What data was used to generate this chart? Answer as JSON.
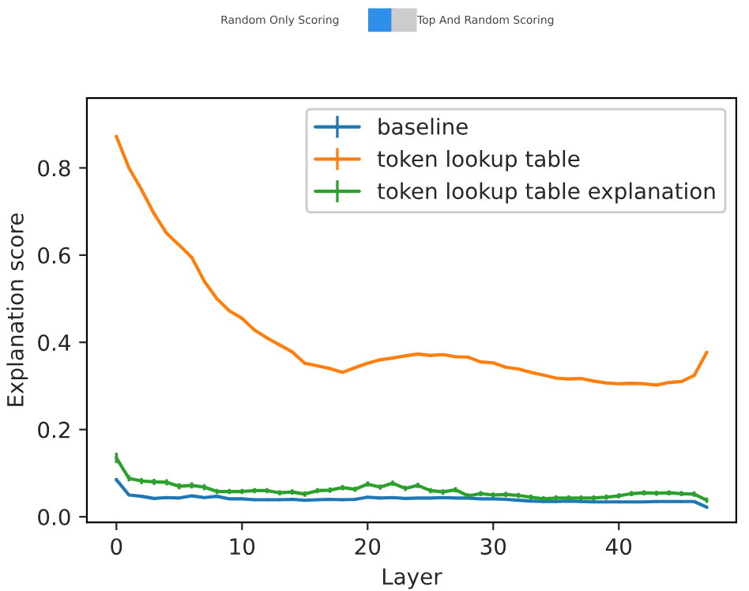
{
  "chart_data": {
    "type": "line",
    "xlabel": "Layer",
    "ylabel": "Explanation score",
    "annotations": [
      "Random Only Scoring",
      "Top And Random Scoring"
    ],
    "x": [
      0,
      1,
      2,
      3,
      4,
      5,
      6,
      7,
      8,
      9,
      10,
      11,
      12,
      13,
      14,
      15,
      16,
      17,
      18,
      19,
      20,
      21,
      22,
      23,
      24,
      25,
      26,
      27,
      28,
      29,
      30,
      31,
      32,
      33,
      34,
      35,
      36,
      37,
      38,
      39,
      40,
      41,
      42,
      43,
      44,
      45,
      46,
      47
    ],
    "series": [
      {
        "name": "baseline",
        "color": "#1f77b4",
        "values": [
          0.085,
          0.05,
          0.047,
          0.042,
          0.044,
          0.043,
          0.048,
          0.044,
          0.047,
          0.041,
          0.041,
          0.039,
          0.039,
          0.039,
          0.04,
          0.038,
          0.039,
          0.04,
          0.039,
          0.04,
          0.045,
          0.043,
          0.044,
          0.042,
          0.043,
          0.043,
          0.044,
          0.043,
          0.043,
          0.041,
          0.041,
          0.04,
          0.038,
          0.036,
          0.035,
          0.035,
          0.036,
          0.035,
          0.034,
          0.034,
          0.034,
          0.034,
          0.034,
          0.035,
          0.035,
          0.035,
          0.035,
          0.022
        ],
        "errors": [
          0.004,
          0.003,
          0.003,
          0.003,
          0.003,
          0.003,
          0.003,
          0.003,
          0.003,
          0.003,
          0.003,
          0.003,
          0.003,
          0.003,
          0.003,
          0.003,
          0.003,
          0.003,
          0.003,
          0.003,
          0.003,
          0.003,
          0.003,
          0.003,
          0.003,
          0.003,
          0.003,
          0.003,
          0.003,
          0.003,
          0.003,
          0.003,
          0.003,
          0.003,
          0.003,
          0.003,
          0.003,
          0.003,
          0.003,
          0.003,
          0.003,
          0.003,
          0.003,
          0.003,
          0.003,
          0.003,
          0.003,
          0.003
        ]
      },
      {
        "name": "token lookup table",
        "color": "#ff7f0e",
        "values": [
          0.872,
          0.8,
          0.75,
          0.695,
          0.65,
          0.623,
          0.595,
          0.54,
          0.5,
          0.472,
          0.455,
          0.428,
          0.41,
          0.394,
          0.378,
          0.352,
          0.346,
          0.34,
          0.331,
          0.342,
          0.352,
          0.36,
          0.364,
          0.369,
          0.373,
          0.37,
          0.372,
          0.367,
          0.366,
          0.355,
          0.353,
          0.343,
          0.339,
          0.331,
          0.325,
          0.318,
          0.316,
          0.317,
          0.311,
          0.307,
          0.305,
          0.306,
          0.305,
          0.302,
          0.308,
          0.31,
          0.324,
          0.377
        ],
        "errors": [
          0.003,
          0.003,
          0.003,
          0.003,
          0.003,
          0.003,
          0.003,
          0.003,
          0.003,
          0.003,
          0.003,
          0.003,
          0.003,
          0.003,
          0.003,
          0.003,
          0.003,
          0.003,
          0.003,
          0.003,
          0.003,
          0.003,
          0.003,
          0.003,
          0.003,
          0.003,
          0.003,
          0.003,
          0.003,
          0.003,
          0.003,
          0.003,
          0.003,
          0.003,
          0.003,
          0.003,
          0.003,
          0.003,
          0.003,
          0.003,
          0.003,
          0.003,
          0.003,
          0.003,
          0.003,
          0.003,
          0.003,
          0.003
        ]
      },
      {
        "name": "token lookup table explanation",
        "color": "#2ca02c",
        "values": [
          0.135,
          0.088,
          0.082,
          0.08,
          0.079,
          0.07,
          0.072,
          0.068,
          0.058,
          0.058,
          0.058,
          0.06,
          0.06,
          0.055,
          0.057,
          0.052,
          0.06,
          0.061,
          0.067,
          0.063,
          0.075,
          0.068,
          0.077,
          0.065,
          0.072,
          0.06,
          0.057,
          0.062,
          0.048,
          0.053,
          0.05,
          0.051,
          0.049,
          0.045,
          0.041,
          0.043,
          0.043,
          0.043,
          0.043,
          0.045,
          0.048,
          0.053,
          0.055,
          0.054,
          0.055,
          0.053,
          0.052,
          0.038
        ],
        "errors": [
          0.012,
          0.007,
          0.007,
          0.007,
          0.007,
          0.007,
          0.007,
          0.007,
          0.006,
          0.006,
          0.006,
          0.006,
          0.006,
          0.006,
          0.006,
          0.006,
          0.006,
          0.006,
          0.006,
          0.006,
          0.006,
          0.006,
          0.006,
          0.006,
          0.006,
          0.006,
          0.006,
          0.006,
          0.006,
          0.006,
          0.006,
          0.006,
          0.006,
          0.006,
          0.006,
          0.006,
          0.006,
          0.006,
          0.006,
          0.006,
          0.006,
          0.006,
          0.006,
          0.006,
          0.006,
          0.006,
          0.006,
          0.006
        ]
      }
    ],
    "xlim": [
      -2.35,
      49.35
    ],
    "ylim": [
      -0.013,
      0.96
    ],
    "xticks": [
      0,
      10,
      20,
      30,
      40
    ],
    "yticks": [
      {
        "value": 0,
        "label": "0.0"
      },
      {
        "value": 0.2,
        "label": "0.2"
      },
      {
        "value": 0.4,
        "label": "0.4"
      },
      {
        "value": 0.6,
        "label": "0.6"
      },
      {
        "value": 0.8,
        "label": "0.8"
      }
    ],
    "legend": "top right",
    "grid": false
  }
}
